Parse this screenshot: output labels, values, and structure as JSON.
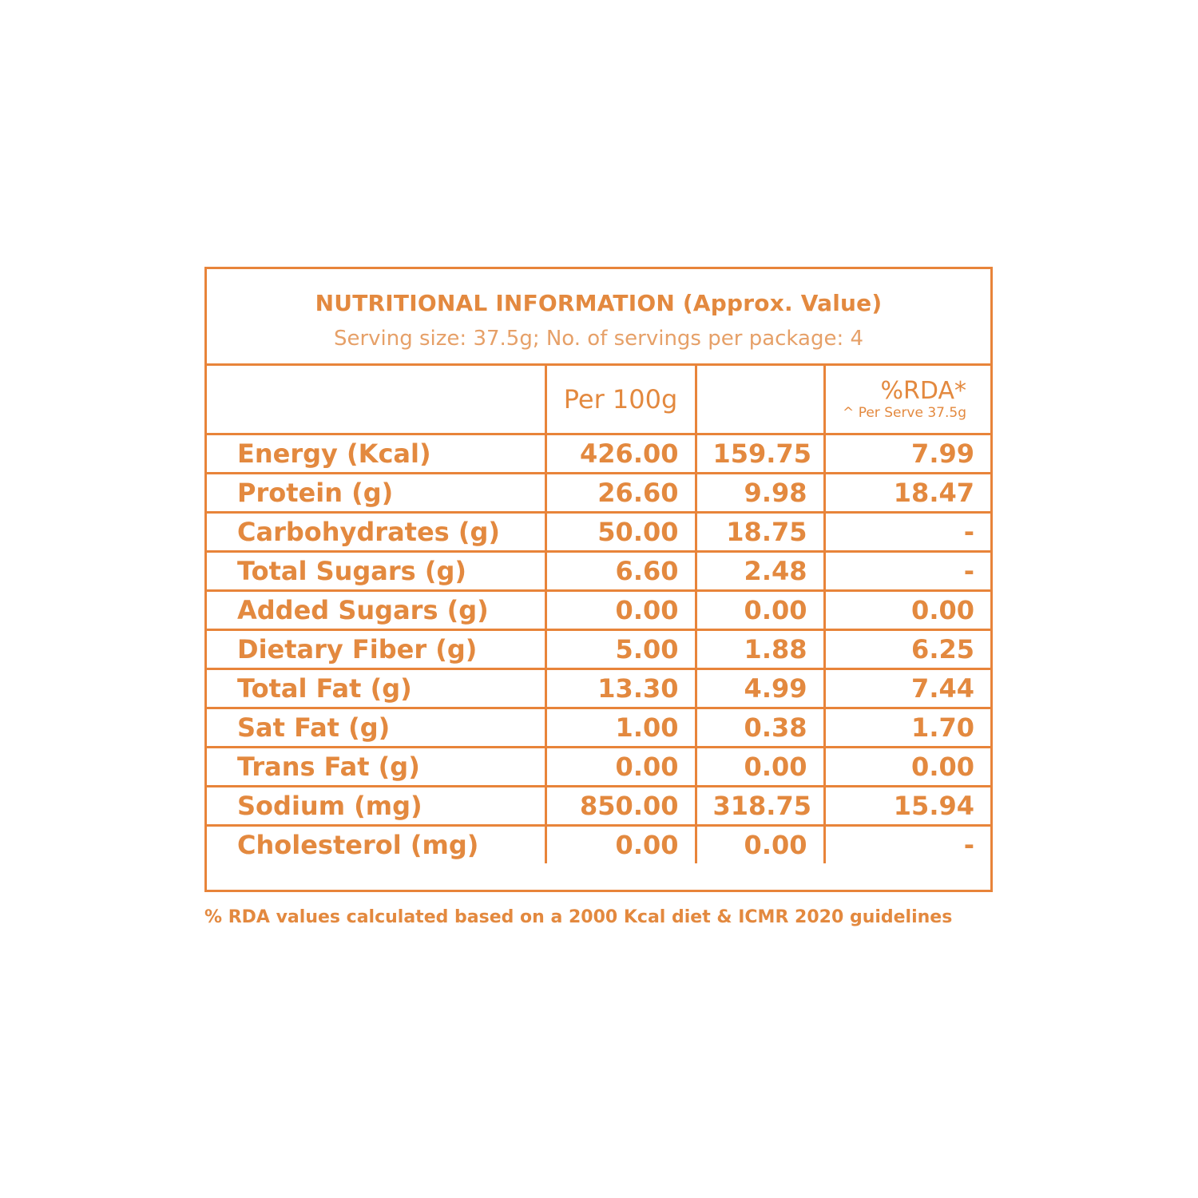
{
  "header": {
    "title": "NUTRITIONAL INFORMATION (Approx. Value)",
    "subtitle": "Serving size: 37.5g; No. of servings per package: 4"
  },
  "columns": {
    "nutrient": "",
    "per100g": "Per 100g",
    "per_serve": "",
    "rda": "%RDA*",
    "rda_note": "^ Per Serve 37.5g"
  },
  "rows": [
    {
      "name": "Energy (Kcal)",
      "per100g": "426.00",
      "per_serve": "159.75",
      "rda": "7.99"
    },
    {
      "name": "Protein (g)",
      "per100g": "26.60",
      "per_serve": "9.98",
      "rda": "18.47"
    },
    {
      "name": "Carbohydrates (g)",
      "per100g": "50.00",
      "per_serve": "18.75",
      "rda": "-"
    },
    {
      "name": "Total Sugars (g)",
      "per100g": "6.60",
      "per_serve": "2.48",
      "rda": "-"
    },
    {
      "name": "Added Sugars (g)",
      "per100g": "0.00",
      "per_serve": "0.00",
      "rda": "0.00"
    },
    {
      "name": "Dietary Fiber (g)",
      "per100g": "5.00",
      "per_serve": "1.88",
      "rda": "6.25"
    },
    {
      "name": "Total Fat (g)",
      "per100g": "13.30",
      "per_serve": "4.99",
      "rda": "7.44"
    },
    {
      "name": "Sat Fat (g)",
      "per100g": "1.00",
      "per_serve": "0.38",
      "rda": "1.70"
    },
    {
      "name": "Trans Fat (g)",
      "per100g": "0.00",
      "per_serve": "0.00",
      "rda": "0.00"
    },
    {
      "name": "Sodium (mg)",
      "per100g": "850.00",
      "per_serve": "318.75",
      "rda": "15.94"
    },
    {
      "name": "Cholesterol (mg)",
      "per100g": "0.00",
      "per_serve": "0.00",
      "rda": "-"
    }
  ],
  "footnote": "% RDA values calculated based on a 2000 Kcal diet & ICMR 2020 guidelines",
  "colors": {
    "accent": "#e8843a",
    "text": "#e3893f"
  }
}
